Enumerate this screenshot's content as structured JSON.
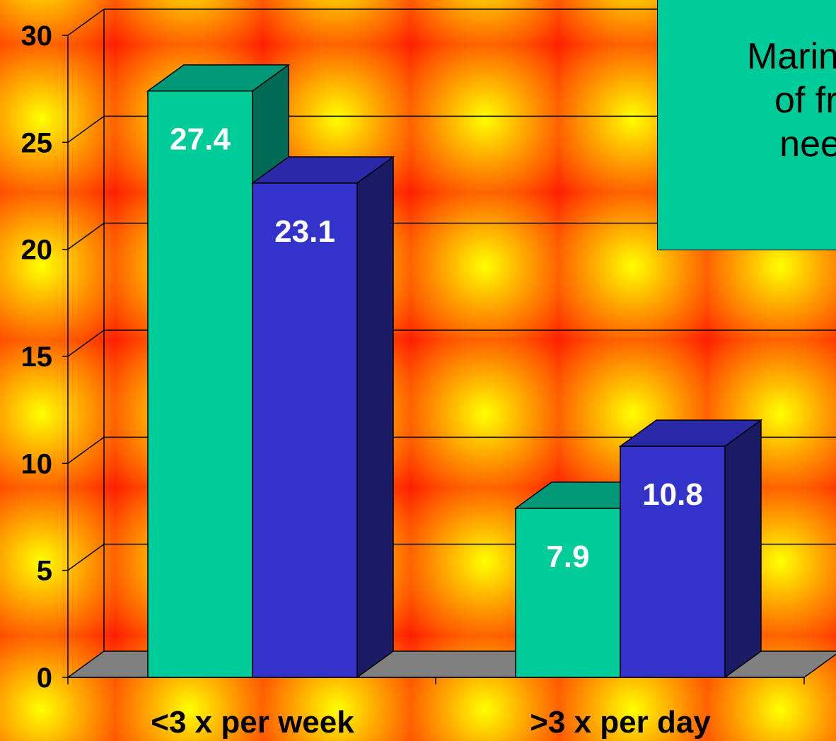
{
  "chart_data": {
    "type": "bar",
    "title": "",
    "xlabel": "",
    "ylabel": "",
    "ylim": [
      0,
      30
    ],
    "yticks": [
      0,
      5,
      10,
      15,
      20,
      25,
      30
    ],
    "categories": [
      "<3 x per week",
      ">3 x per day"
    ],
    "series": [
      {
        "color": "#00cc99",
        "values": [
          27.4,
          7.9
        ]
      },
      {
        "color": "#3333cc",
        "values": [
          23.1,
          10.8
        ]
      }
    ],
    "data_labels": [
      [
        "27.4",
        "7.9"
      ],
      [
        "23.1",
        "10.8"
      ]
    ],
    "grid": true,
    "style": "3d-bar"
  },
  "note": {
    "lines": [
      "Marine &",
      "of frui",
      "need"
    ]
  },
  "colors": {
    "series_a": "#00cc99",
    "series_a_top": "#009977",
    "series_a_side": "#006b55",
    "series_b": "#3333cc",
    "series_b_top": "#2a2aa8",
    "series_b_side": "#1c1c66",
    "floor": "#808080"
  }
}
